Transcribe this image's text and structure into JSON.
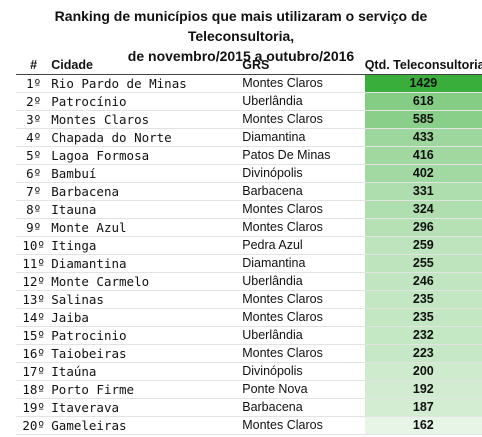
{
  "title_line1": "Ranking de municípios que mais utilizaram o serviço de Teleconsultoria,",
  "title_line2": "de novembro/2015 a outubro/2016",
  "headers": {
    "rank": "#",
    "city": "Cidade",
    "grs": "GRS",
    "qtd": "Qtd. Teleconsultorias"
  },
  "scale": {
    "max": 1429,
    "color_high": "#3aae3a",
    "color_low": "#ffffff"
  },
  "rows": [
    {
      "rank": "1º",
      "city": "Rio Pardo de Minas",
      "grs": "Montes Claros",
      "qtd": "1429"
    },
    {
      "rank": "2º",
      "city": "Patrocínio",
      "grs": "Uberlândia",
      "qtd": "618"
    },
    {
      "rank": "3º",
      "city": "Montes Claros",
      "grs": "Montes Claros",
      "qtd": "585"
    },
    {
      "rank": "4º",
      "city": "Chapada do Norte",
      "grs": "Diamantina",
      "qtd": "433"
    },
    {
      "rank": "5º",
      "city": "Lagoa Formosa",
      "grs": "Patos De Minas",
      "qtd": "416"
    },
    {
      "rank": "6º",
      "city": "Bambuí",
      "grs": "Divinópolis",
      "qtd": "402"
    },
    {
      "rank": "7º",
      "city": "Barbacena",
      "grs": "Barbacena",
      "qtd": "331"
    },
    {
      "rank": "8º",
      "city": "Itauna",
      "grs": "Montes Claros",
      "qtd": "324"
    },
    {
      "rank": "9º",
      "city": "Monte Azul",
      "grs": "Montes Claros",
      "qtd": "296"
    },
    {
      "rank": "10º",
      "city": "Itinga",
      "grs": "Pedra Azul",
      "qtd": "259"
    },
    {
      "rank": "11º",
      "city": "Diamantina",
      "grs": "Diamantina",
      "qtd": "255"
    },
    {
      "rank": "12º",
      "city": "Monte Carmelo",
      "grs": "Uberlândia",
      "qtd": "246"
    },
    {
      "rank": "13º",
      "city": "Salinas",
      "grs": "Montes Claros",
      "qtd": "235"
    },
    {
      "rank": "14º",
      "city": "Jaiba",
      "grs": "Montes Claros",
      "qtd": "235"
    },
    {
      "rank": "15º",
      "city": "Patrocinio",
      "grs": "Uberlândia",
      "qtd": "232"
    },
    {
      "rank": "16º",
      "city": "Taiobeiras",
      "grs": "Montes Claros",
      "qtd": "223"
    },
    {
      "rank": "17º",
      "city": "Itaúna",
      "grs": "Divinópolis",
      "qtd": "200"
    },
    {
      "rank": "18º",
      "city": "Porto Firme",
      "grs": "Ponte Nova",
      "qtd": "192"
    },
    {
      "rank": "19º",
      "city": "Itaverava",
      "grs": "Barbacena",
      "qtd": "187"
    },
    {
      "rank": "20º",
      "city": "Gameleiras",
      "grs": "Montes Claros",
      "qtd": "162"
    }
  ]
}
